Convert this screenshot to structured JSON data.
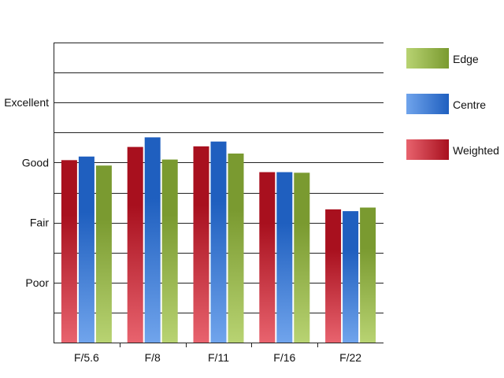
{
  "chart_data": {
    "type": "bar",
    "title": "",
    "xlabel": "",
    "ylabel": "",
    "categories": [
      "F/5.6",
      "F/8",
      "F/11",
      "F/16",
      "F/22"
    ],
    "y_tick_labels": [
      {
        "value": 1,
        "label": "Poor"
      },
      {
        "value": 2,
        "label": "Fair"
      },
      {
        "value": 3,
        "label": "Good"
      },
      {
        "value": 4,
        "label": "Excellent"
      }
    ],
    "ylim": [
      0,
      5
    ],
    "grid": true,
    "legend_position": "right",
    "series": [
      {
        "name": "Weighted",
        "values": [
          3.04,
          3.26,
          3.27,
          2.84,
          2.22
        ],
        "colors": {
          "top": "#a8101e",
          "bottom": "#e8636e"
        }
      },
      {
        "name": "Centre",
        "values": [
          3.1,
          3.42,
          3.35,
          2.84,
          2.19
        ],
        "colors": {
          "top": "#1f5fbf",
          "bottom": "#70a4ec"
        }
      },
      {
        "name": "Edge",
        "values": [
          2.95,
          3.05,
          3.15,
          2.83,
          2.25
        ],
        "colors": {
          "top": "#7a9a30",
          "bottom": "#b8d372"
        }
      }
    ],
    "legend_order": [
      "Edge",
      "Centre",
      "Weighted"
    ]
  }
}
